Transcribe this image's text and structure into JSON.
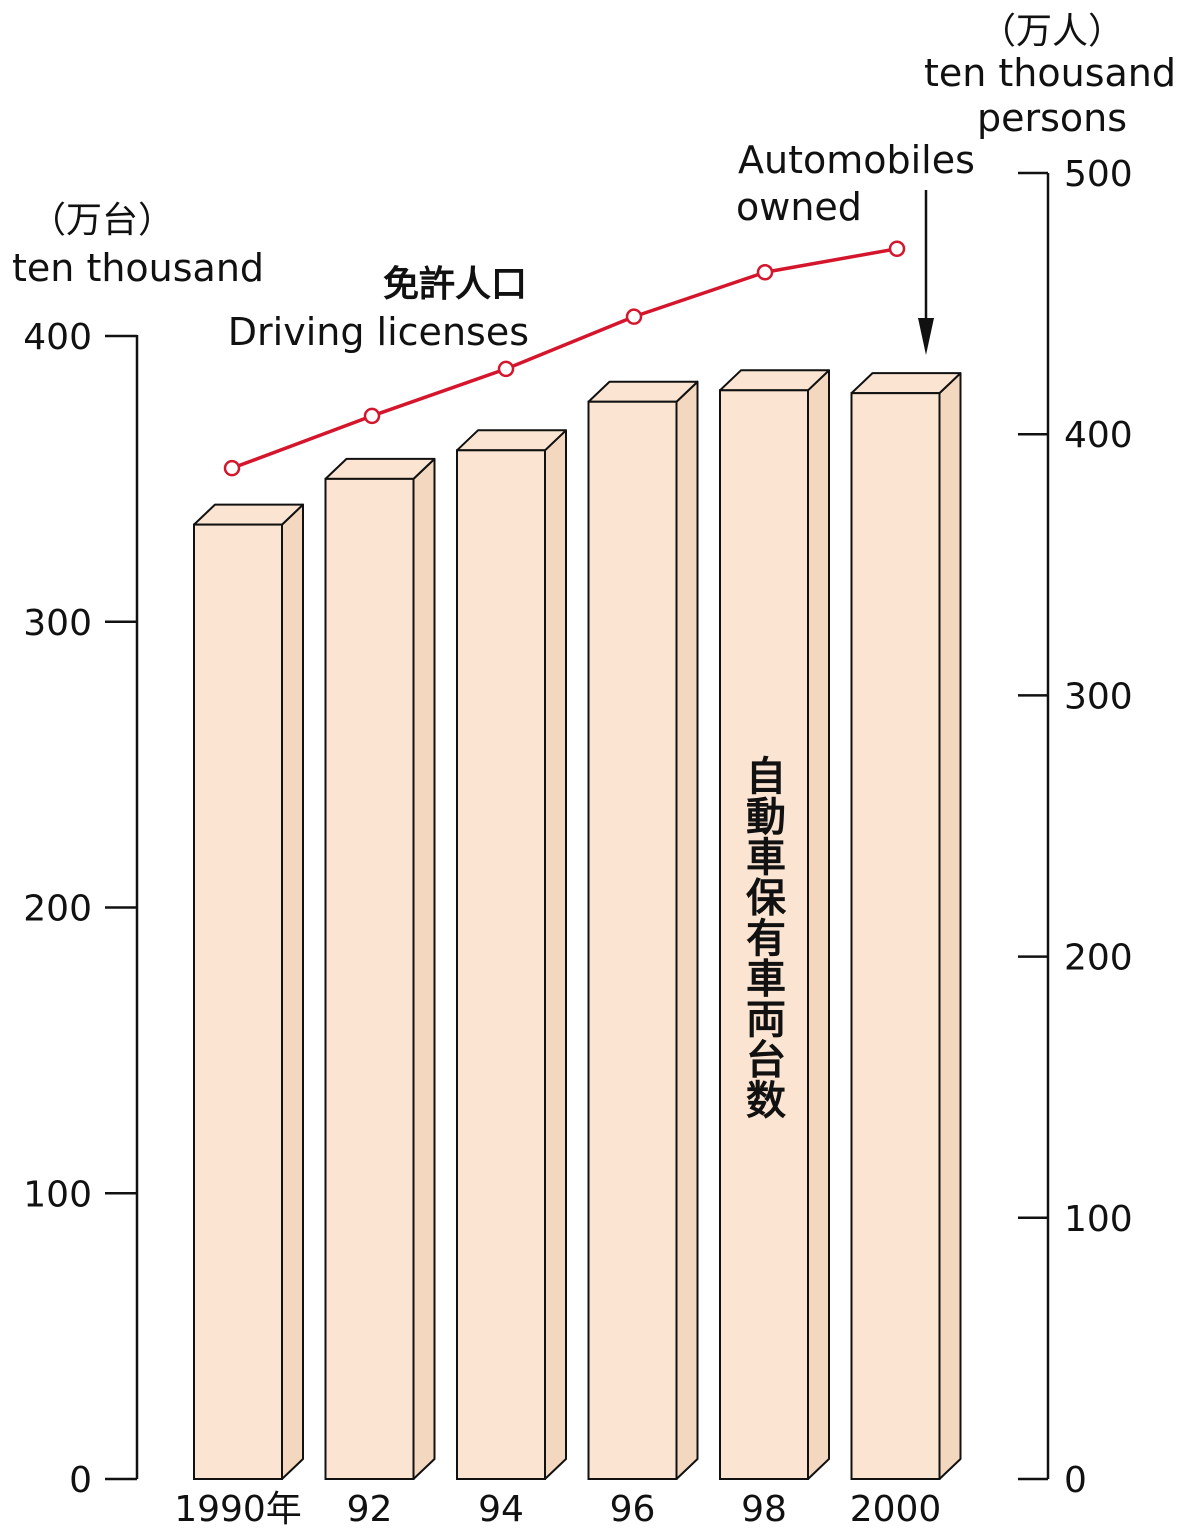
{
  "colors": {
    "bar_fill": "#fbe5d2",
    "bar_side": "#f3d7be",
    "bar_stroke": "#111111",
    "line": "#d4152c",
    "axis": "#111111"
  },
  "chart_data": {
    "type": "bar",
    "categories": [
      "1990年",
      "92",
      "94",
      "96",
      "98",
      "2000"
    ],
    "left_axis": {
      "unit_ja": "（万台）",
      "unit_en": "ten thousand",
      "ylim": [
        0,
        400
      ],
      "ticks": [
        0,
        100,
        200,
        300,
        400
      ]
    },
    "right_axis": {
      "unit_ja": "（万人）",
      "unit_en_line1": "ten thousand",
      "unit_en_line2": "persons",
      "ylim": [
        0,
        500
      ],
      "ticks": [
        0,
        100,
        200,
        300,
        400,
        500
      ]
    },
    "series": [
      {
        "name": "自動車保有車両台数",
        "label_en_line1": "Automobiles",
        "label_en_line2": "owned",
        "kind": "bar",
        "axis": "left",
        "values": [
          334,
          350,
          360,
          377,
          381,
          380
        ]
      },
      {
        "name": "免許人口",
        "label_en": "Driving licenses",
        "kind": "line",
        "axis": "right",
        "values": [
          387,
          407,
          425,
          445,
          462,
          471
        ]
      }
    ],
    "grid": false
  }
}
